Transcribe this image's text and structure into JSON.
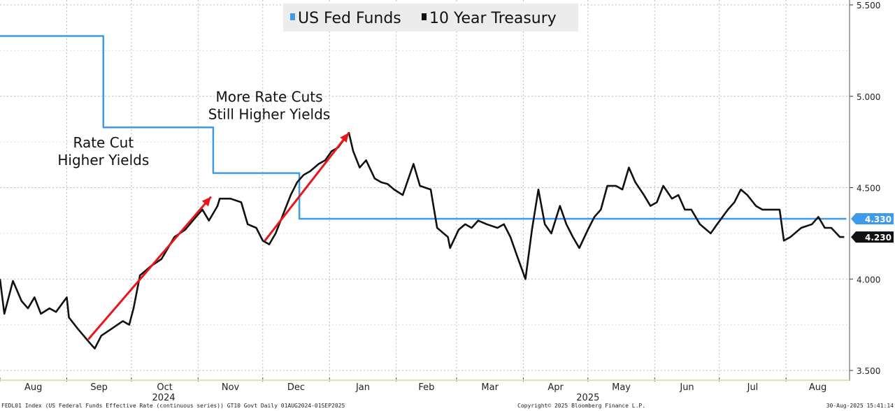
{
  "chart_data": {
    "type": "line",
    "x_unit": "days since 2024-08-01",
    "xlim": [
      0,
      395
    ],
    "ylim": [
      3.5,
      5.5
    ],
    "y_ticks": [
      "5.500",
      "5.000",
      "4.500",
      "4.000",
      "3.500"
    ],
    "y_tick_values": [
      5.5,
      5.0,
      4.5,
      4.0,
      3.5
    ],
    "month_ticks": [
      {
        "label": "Aug",
        "start": 0,
        "end": 31
      },
      {
        "label": "Sep",
        "start": 31,
        "end": 61
      },
      {
        "label": "Oct",
        "start": 61,
        "end": 92
      },
      {
        "label": "Nov",
        "start": 92,
        "end": 122
      },
      {
        "label": "Dec",
        "start": 122,
        "end": 153
      },
      {
        "label": "Jan",
        "start": 153,
        "end": 184
      },
      {
        "label": "Feb",
        "start": 184,
        "end": 212
      },
      {
        "label": "Mar",
        "start": 212,
        "end": 243
      },
      {
        "label": "Apr",
        "start": 243,
        "end": 273
      },
      {
        "label": "May",
        "start": 273,
        "end": 304
      },
      {
        "label": "Jun",
        "start": 304,
        "end": 334
      },
      {
        "label": "Jul",
        "start": 334,
        "end": 365
      },
      {
        "label": "Aug",
        "start": 365,
        "end": 396
      }
    ],
    "year_labels": [
      {
        "label": "2024",
        "day": 76
      },
      {
        "label": "2025",
        "day": 273
      }
    ],
    "legend": [
      "US Fed Funds",
      "10 Year Treasury"
    ],
    "legend_position": "top-center",
    "series": [
      {
        "name": "US Fed Funds",
        "color": "#3d9be9",
        "step": true,
        "x": [
          0,
          48,
          48,
          99,
          99,
          139,
          139,
          393
        ],
        "y": [
          5.33,
          5.33,
          4.83,
          4.83,
          4.58,
          4.58,
          4.33,
          4.33
        ],
        "last_label": "4.330"
      },
      {
        "name": "10 Year Treasury",
        "color": "#111111",
        "x": [
          0,
          2,
          6,
          10,
          13,
          16,
          19,
          23,
          26,
          31,
          32,
          36,
          41,
          44,
          47,
          52,
          57,
          60,
          62,
          65,
          70,
          75,
          78,
          81,
          86,
          91,
          94,
          97,
          101,
          102,
          107,
          112,
          115,
          119,
          122,
          125,
          128,
          131,
          135,
          138,
          141,
          144,
          148,
          151,
          154,
          157,
          162,
          164,
          167,
          170,
          174,
          177,
          180,
          183,
          187,
          192,
          195,
          200,
          203,
          208,
          209,
          213,
          216,
          219,
          222,
          226,
          231,
          234,
          237,
          240,
          244,
          247,
          250,
          253,
          256,
          260,
          263,
          266,
          269,
          273,
          276,
          279,
          282,
          286,
          289,
          292,
          295,
          299,
          302,
          305,
          308,
          312,
          315,
          318,
          321,
          325,
          330,
          333,
          338,
          341,
          344,
          347,
          351,
          354,
          359,
          362,
          364,
          367,
          372,
          377,
          380,
          383,
          386,
          390,
          392
        ],
        "y": [
          4.0,
          3.81,
          3.99,
          3.88,
          3.84,
          3.9,
          3.81,
          3.84,
          3.82,
          3.9,
          3.79,
          3.73,
          3.66,
          3.62,
          3.69,
          3.73,
          3.77,
          3.75,
          3.84,
          4.02,
          4.07,
          4.11,
          4.17,
          4.23,
          4.27,
          4.34,
          4.38,
          4.32,
          4.4,
          4.44,
          4.44,
          4.42,
          4.3,
          4.28,
          4.21,
          4.19,
          4.25,
          4.34,
          4.46,
          4.53,
          4.57,
          4.59,
          4.63,
          4.65,
          4.7,
          4.72,
          4.8,
          4.7,
          4.61,
          4.65,
          4.55,
          4.53,
          4.52,
          4.49,
          4.46,
          4.63,
          4.51,
          4.49,
          4.28,
          4.23,
          4.17,
          4.27,
          4.3,
          4.28,
          4.32,
          4.3,
          4.28,
          4.3,
          4.23,
          4.13,
          4.0,
          4.27,
          4.49,
          4.3,
          4.25,
          4.4,
          4.3,
          4.23,
          4.17,
          4.27,
          4.34,
          4.38,
          4.51,
          4.51,
          4.49,
          4.61,
          4.53,
          4.46,
          4.4,
          4.42,
          4.51,
          4.44,
          4.46,
          4.38,
          4.38,
          4.3,
          4.25,
          4.3,
          4.38,
          4.42,
          4.49,
          4.46,
          4.4,
          4.38,
          4.38,
          4.38,
          4.21,
          4.23,
          4.28,
          4.3,
          4.34,
          4.28,
          4.28,
          4.23,
          4.23
        ],
        "last_label": "4.230"
      }
    ],
    "annotations": [
      {
        "lines": [
          "Rate Cut",
          "Higher Yields"
        ],
        "day": 48,
        "value": 4.72
      },
      {
        "lines": [
          "More Rate Cuts",
          "Still Higher Yields"
        ],
        "day": 125,
        "value": 4.97
      }
    ],
    "arrows": [
      {
        "from": [
          41,
          3.67
        ],
        "to": [
          98,
          4.45
        ],
        "color": "#e8161b"
      },
      {
        "from": [
          123,
          4.21
        ],
        "to": [
          162,
          4.8
        ],
        "color": "#e8161b"
      }
    ]
  },
  "footer": {
    "source": "FEDL01 Index (US Federal Funds Effective Rate (continuous series)) GT10  Govt  Daily 01AUG2024-01SEP2025",
    "copyright": "Copyright© 2025 Bloomberg Finance L.P.",
    "timestamp": "30-Aug-2025 15:41:14"
  }
}
